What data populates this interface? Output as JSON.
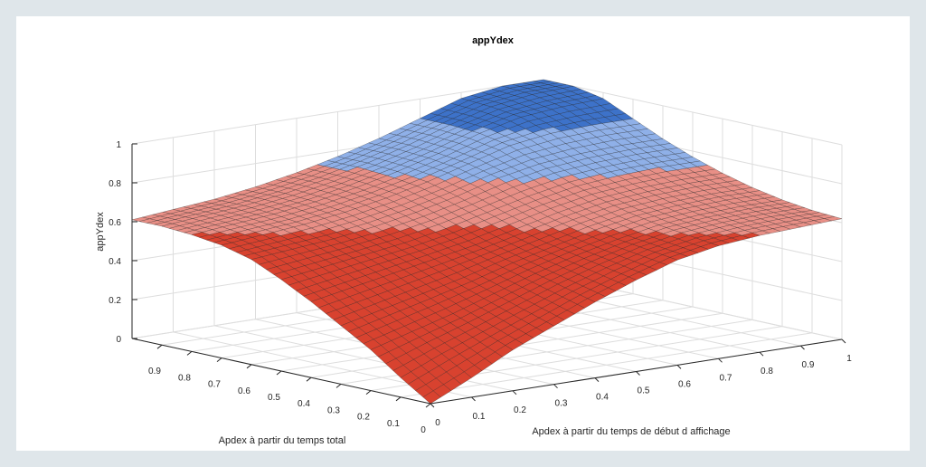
{
  "chart_data": {
    "type": "surface",
    "title": "appYdex",
    "xlabel": "Apdex à partir du temps de début d affichage",
    "ylabel": "Apdex à partir du temps total",
    "zlabel": "appYdex",
    "xlim": [
      0,
      1
    ],
    "ylim": [
      0,
      1
    ],
    "zlim": [
      0,
      1
    ],
    "x_ticks": [
      "0",
      "0.1",
      "0.2",
      "0.3",
      "0.4",
      "0.5",
      "0.6",
      "0.7",
      "0.8",
      "0.9",
      "1"
    ],
    "y_ticks": [
      "0",
      "0.1",
      "0.2",
      "0.3",
      "0.4",
      "0.5",
      "0.6",
      "0.7",
      "0.8",
      "0.9"
    ],
    "z_ticks": [
      "0",
      "0.2",
      "0.4",
      "0.6",
      "0.8",
      "1"
    ],
    "grid": true,
    "grid_x": [
      0,
      0.1,
      0.2,
      0.3,
      0.4,
      0.5,
      0.6,
      0.7,
      0.8,
      0.9,
      1
    ],
    "grid_y": [
      0,
      0.1,
      0.2,
      0.3,
      0.4,
      0.5,
      0.6,
      0.7,
      0.8,
      0.9,
      1
    ],
    "z_values": [
      [
        0.0,
        0.1,
        0.21,
        0.3,
        0.39,
        0.47,
        0.54,
        0.58,
        0.6,
        0.61,
        0.62
      ],
      [
        0.1,
        0.19,
        0.27,
        0.35,
        0.43,
        0.5,
        0.56,
        0.6,
        0.62,
        0.63,
        0.63
      ],
      [
        0.21,
        0.27,
        0.33,
        0.4,
        0.47,
        0.53,
        0.58,
        0.62,
        0.64,
        0.65,
        0.65
      ],
      [
        0.3,
        0.35,
        0.4,
        0.45,
        0.51,
        0.56,
        0.61,
        0.65,
        0.67,
        0.68,
        0.68
      ],
      [
        0.39,
        0.43,
        0.47,
        0.51,
        0.55,
        0.6,
        0.65,
        0.69,
        0.71,
        0.72,
        0.72
      ],
      [
        0.47,
        0.5,
        0.53,
        0.56,
        0.6,
        0.65,
        0.7,
        0.74,
        0.76,
        0.77,
        0.77
      ],
      [
        0.54,
        0.56,
        0.58,
        0.61,
        0.65,
        0.7,
        0.76,
        0.8,
        0.82,
        0.83,
        0.83
      ],
      [
        0.58,
        0.6,
        0.62,
        0.65,
        0.69,
        0.74,
        0.8,
        0.86,
        0.89,
        0.9,
        0.9
      ],
      [
        0.6,
        0.62,
        0.64,
        0.67,
        0.71,
        0.76,
        0.82,
        0.89,
        0.94,
        0.96,
        0.97
      ],
      [
        0.61,
        0.63,
        0.65,
        0.68,
        0.72,
        0.77,
        0.83,
        0.9,
        0.96,
        0.99,
        1.0
      ],
      [
        0.61,
        0.63,
        0.65,
        0.68,
        0.72,
        0.77,
        0.83,
        0.9,
        0.97,
        1.0,
        1.0
      ]
    ],
    "colormap": [
      "#d8422f",
      "#e88f86",
      "#8fb0e8",
      "#3d72c9"
    ],
    "colormap_breaks": [
      0,
      0.6,
      0.75,
      0.9,
      1.0
    ],
    "edge_color": "#1a1a1a",
    "grid_color": "#dddddd",
    "axis_color": "#262626",
    "background": "#ffffff",
    "frame_color": "#dfe6ea"
  }
}
